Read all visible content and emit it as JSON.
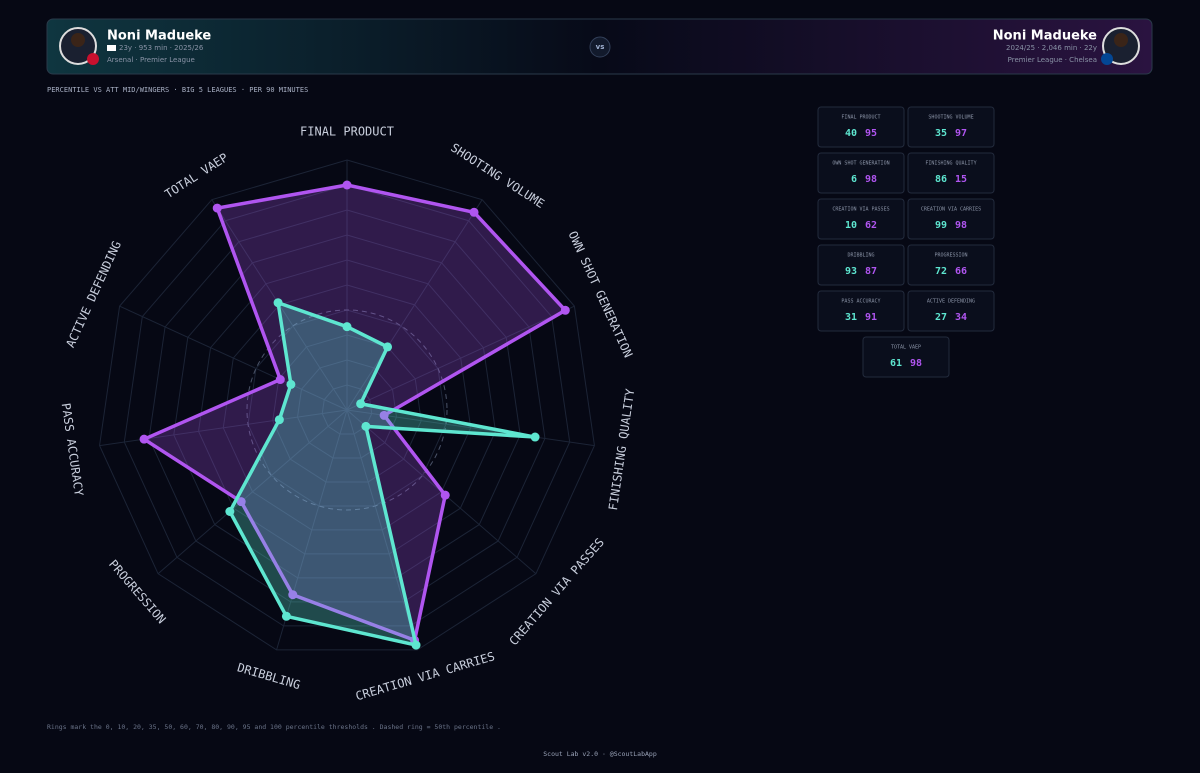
{
  "header": {
    "left_meta": "23y · 953 min · 2025/26",
    "left_club": "Arsenal · Premier League",
    "vs": "vs",
    "right_meta": "2024/25 · 2,046 min · 22y",
    "right_club": "Premier League · Chelsea"
  },
  "subtitle": "PERCENTILE VS ATT MID/WINGERS · BIG 5 LEAGUES · PER 90 MINUTES",
  "note": "Rings mark the 0, 10, 20, 35, 50, 60, 70, 80, 90, 95 and 100 percentile thresholds . Dashed ring = 50th percentile .",
  "footer": "Scout Lab v2.0 · @ScoutLabApp",
  "chart_data": {
    "type": "radar",
    "categories": [
      "FINAL PRODUCT",
      "SHOOTING VOLUME",
      "OWN SHOT GENERATION",
      "FINISHING QUALITY",
      "CREATION VIA PASSES",
      "CREATION VIA CARRIES",
      "DRIBBLING",
      "PROGRESSION",
      "PASS ACCURACY",
      "ACTIVE DEFENDING",
      "TOTAL VAEP"
    ],
    "series": [
      {
        "name": "Noni Madueke",
        "color": "#5ee6d0",
        "values": [
          40,
          35,
          6,
          86,
          10,
          99,
          93,
          72,
          31,
          27,
          61
        ]
      },
      {
        "name": "Noni Madueke",
        "color": "#b055f0",
        "values": [
          95,
          97,
          98,
          15,
          62,
          98,
          87,
          66,
          91,
          34,
          98
        ]
      }
    ],
    "rlim": [
      0,
      100
    ],
    "rticks": [
      0,
      10,
      20,
      35,
      50,
      60,
      70,
      80,
      90,
      95,
      100
    ],
    "dashed_ring": 50,
    "grid": true
  }
}
